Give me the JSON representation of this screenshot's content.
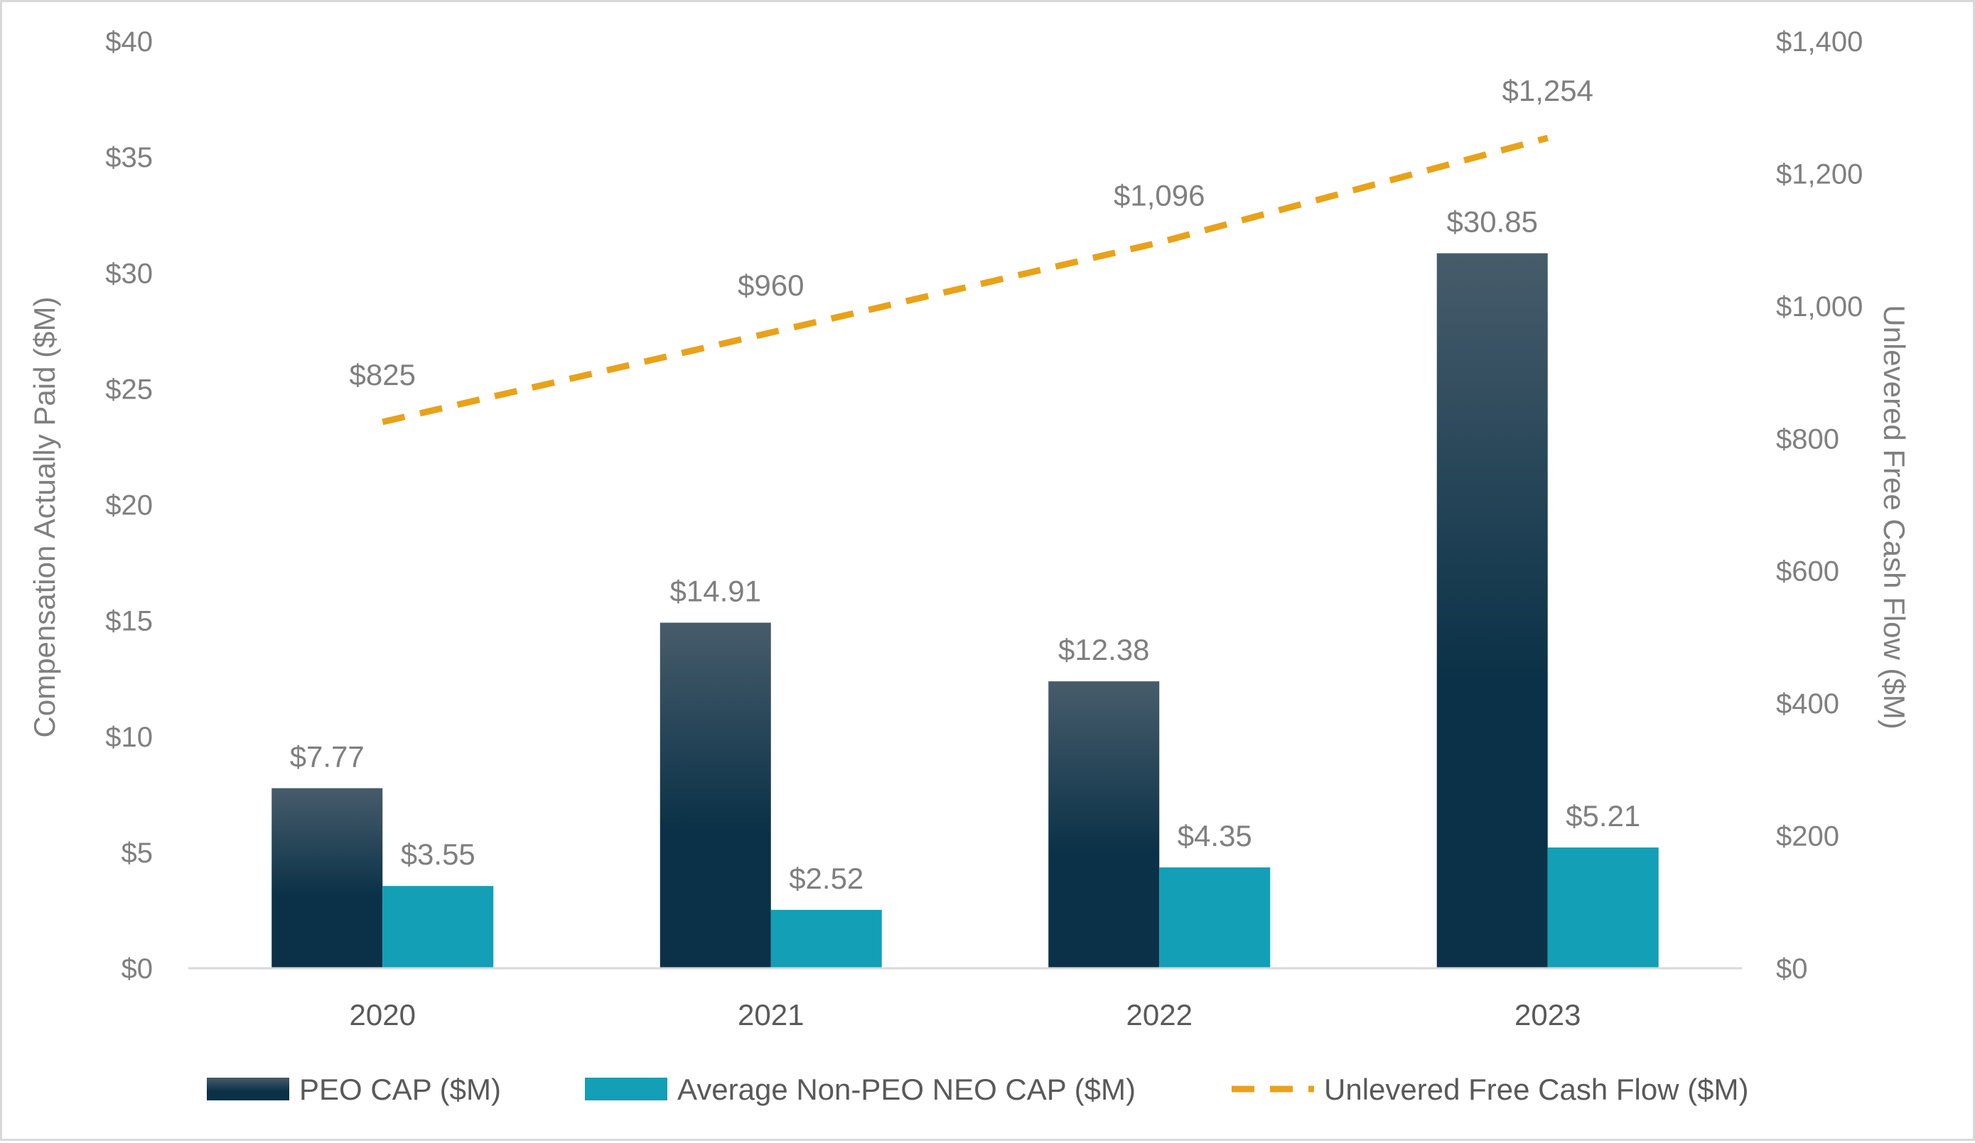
{
  "chart_data": {
    "type": "bar",
    "categories": [
      "2020",
      "2021",
      "2022",
      "2023"
    ],
    "series": [
      {
        "name": "PEO CAP ($M)",
        "type": "bar",
        "axis": "left",
        "values": [
          7.77,
          14.91,
          12.38,
          30.85
        ],
        "labels": [
          "$7.77",
          "$14.91",
          "$12.38",
          "$30.85"
        ],
        "color_top": "#475c6b",
        "color_bottom": "#0a3147"
      },
      {
        "name": "Average Non-PEO NEO CAP ($M)",
        "type": "bar",
        "axis": "left",
        "values": [
          3.55,
          2.52,
          4.35,
          5.21
        ],
        "labels": [
          "$3.55",
          "$2.52",
          "$4.35",
          "$5.21"
        ],
        "color": "#139fb5"
      },
      {
        "name": "Unlevered Free Cash Flow ($M)",
        "type": "line",
        "line_style": "dashed",
        "axis": "right",
        "values": [
          825,
          960,
          1096,
          1254
        ],
        "labels": [
          "$825",
          "$960",
          "$1,096",
          "$1,254"
        ],
        "color": "#e8a21a"
      }
    ],
    "ylabel": "Compensation Actually Paid ($M)",
    "ylabel_right": "Unlevered Free Cash Flow ($M)",
    "ylim": [
      0,
      40
    ],
    "ylim_right": [
      0,
      1400
    ],
    "y_ticks": [
      "$0",
      "$5",
      "$10",
      "$15",
      "$20",
      "$25",
      "$30",
      "$35",
      "$40"
    ],
    "y_ticks_right": [
      "$0",
      "$200",
      "$400",
      "$600",
      "$800",
      "$1,000",
      "$1,200",
      "$1,400"
    ],
    "grid": false,
    "legend_position": "bottom",
    "axis_color": "#d9d9d9"
  }
}
